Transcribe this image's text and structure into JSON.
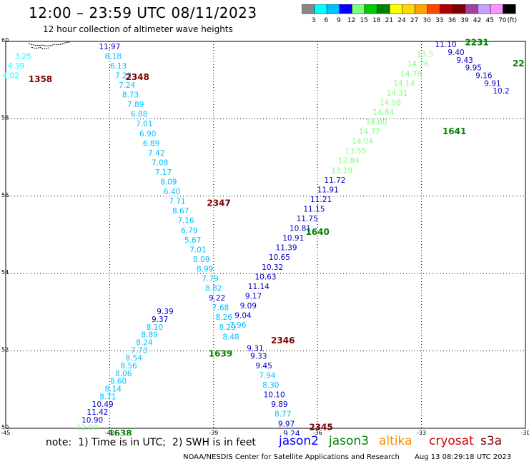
{
  "header": {
    "title": "12:00 – 23:59 UTC 08/11/2023",
    "subtitle": "12 hour collection of altimeter wave heights"
  },
  "colorbar": {
    "colors": [
      "#888888",
      "#00ffff",
      "#00bfff",
      "#0000ff",
      "#80ff80",
      "#00cc00",
      "#008000",
      "#ffff00",
      "#ffd700",
      "#ffa500",
      "#ff4500",
      "#b00000",
      "#800000",
      "#a040a0",
      "#c8a0ff",
      "#ff90ff",
      "#000000"
    ],
    "labels": [
      "3",
      "6",
      "9",
      "12",
      "15",
      "18",
      "21",
      "24",
      "27",
      "30",
      "33",
      "36",
      "39",
      "42",
      "45",
      "70",
      "(ft)"
    ]
  },
  "axes": {
    "lat_labels": [
      "60",
      "58",
      "56",
      "54",
      "52",
      "50"
    ],
    "lon_labels": [
      "-45",
      "-42",
      "-39",
      "-36",
      "-33",
      "-30"
    ]
  },
  "chart_data": {
    "type": "scatter",
    "xlabel": "",
    "ylabel": "",
    "xlim": [
      -45,
      -30
    ],
    "ylim": [
      50,
      60
    ],
    "tracks": [
      {
        "name": "cryosat 2348 track",
        "points": [
          [
            -42.0,
            59.8,
            "11.97",
            "#0000cd"
          ],
          [
            -41.9,
            59.55,
            "8.18",
            "#00bfff"
          ],
          [
            -41.75,
            59.3,
            "6.13",
            "#00bfff"
          ],
          [
            -41.6,
            59.05,
            "7.23",
            "#00bfff"
          ],
          [
            -41.5,
            58.8,
            "7.24",
            "#00bfff"
          ],
          [
            -41.4,
            58.55,
            "8.73",
            "#00bfff"
          ],
          [
            -41.25,
            58.3,
            "7.89",
            "#00bfff"
          ],
          [
            -41.15,
            58.05,
            "6.88",
            "#00bfff"
          ],
          [
            -41.0,
            57.8,
            "7.01",
            "#00bfff"
          ],
          [
            -40.9,
            57.55,
            "6.90",
            "#00bfff"
          ],
          [
            -40.8,
            57.3,
            "6.89",
            "#00bfff"
          ],
          [
            -40.65,
            57.05,
            "7.42",
            "#00bfff"
          ],
          [
            -40.55,
            56.8,
            "7.08",
            "#00bfff"
          ],
          [
            -40.45,
            56.55,
            "7.17",
            "#00bfff"
          ],
          [
            -40.3,
            56.3,
            "8.09",
            "#00bfff"
          ],
          [
            -40.2,
            56.05,
            "6.40",
            "#00bfff"
          ],
          [
            -40.05,
            55.8,
            "7.71",
            "#00bfff"
          ],
          [
            -39.95,
            55.55,
            "8.67",
            "#00bfff"
          ],
          [
            -39.8,
            55.3,
            "7.16",
            "#00bfff"
          ],
          [
            -39.7,
            55.05,
            "6.79",
            "#00bfff"
          ],
          [
            -39.6,
            54.8,
            "5.67",
            "#00bfff"
          ],
          [
            -39.45,
            54.55,
            "7.01",
            "#00bfff"
          ],
          [
            -39.35,
            54.3,
            "8.09",
            "#00bfff"
          ],
          [
            -39.25,
            54.05,
            "8.99",
            "#00bfff"
          ],
          [
            -39.1,
            53.8,
            "7.79",
            "#00bfff"
          ],
          [
            -39.0,
            53.55,
            "8.82",
            "#00bfff"
          ],
          [
            -38.9,
            53.3,
            "9.22",
            "#0000cd"
          ],
          [
            -38.8,
            53.05,
            "7.68",
            "#00bfff"
          ],
          [
            -38.7,
            52.8,
            "8.26",
            "#00bfff"
          ],
          [
            -38.6,
            52.55,
            "8.29",
            "#00bfff"
          ],
          [
            -38.5,
            52.3,
            "8.48",
            "#00bfff"
          ]
        ]
      },
      {
        "name": "cryosat 2346 track",
        "points": [
          [
            -37.8,
            52.0,
            "9.31",
            "#0000cd"
          ],
          [
            -37.7,
            51.8,
            "9.33",
            "#0000cd"
          ],
          [
            -37.55,
            51.55,
            "9.45",
            "#0000cd"
          ],
          [
            -37.45,
            51.3,
            "7.94",
            "#00bfff"
          ],
          [
            -37.35,
            51.05,
            "8.30",
            "#00bfff"
          ],
          [
            -37.25,
            50.8,
            "10.10",
            "#0000cd"
          ],
          [
            -37.1,
            50.55,
            "9.89",
            "#0000cd"
          ],
          [
            -37.0,
            50.3,
            "8.77",
            "#00bfff"
          ],
          [
            -36.9,
            50.05,
            "9.97",
            "#0000cd"
          ],
          [
            -36.75,
            49.8,
            "9.24",
            "#0000cd"
          ]
        ]
      },
      {
        "name": "jason3 1638 track",
        "points": [
          [
            -42.65,
            49.95,
            "12.00",
            "#80ff80"
          ],
          [
            -42.5,
            50.15,
            "10.90",
            "#0000cd"
          ],
          [
            -42.35,
            50.35,
            "11.42",
            "#0000cd"
          ],
          [
            -42.2,
            50.55,
            "10.49",
            "#0000cd"
          ],
          [
            -42.05,
            50.75,
            "8.71",
            "#00bfff"
          ],
          [
            -41.9,
            50.95,
            "8.14",
            "#00bfff"
          ],
          [
            -41.75,
            51.15,
            "8.60",
            "#00bfff"
          ],
          [
            -41.6,
            51.35,
            "8.06",
            "#00bfff"
          ],
          [
            -41.45,
            51.55,
            "8.56",
            "#00bfff"
          ],
          [
            -41.3,
            51.75,
            "8.54",
            "#00bfff"
          ],
          [
            -41.15,
            51.95,
            "7.73",
            "#00bfff"
          ],
          [
            -41.0,
            52.15,
            "8.24",
            "#00bfff"
          ],
          [
            -40.85,
            52.35,
            "8.89",
            "#00bfff"
          ],
          [
            -40.7,
            52.55,
            "8.10",
            "#00bfff"
          ],
          [
            -40.55,
            52.75,
            "9.37",
            "#0000cd"
          ],
          [
            -40.4,
            52.95,
            "9.39",
            "#0000cd"
          ]
        ]
      },
      {
        "name": "jason3 1640 track",
        "points": [
          [
            -38.3,
            52.6,
            "7.96",
            "#00bfff"
          ],
          [
            -38.15,
            52.85,
            "9.04",
            "#0000cd"
          ],
          [
            -38.0,
            53.1,
            "9.09",
            "#0000cd"
          ],
          [
            -37.85,
            53.35,
            "9.17",
            "#0000cd"
          ],
          [
            -37.7,
            53.6,
            "11.14",
            "#0000cd"
          ],
          [
            -37.5,
            53.85,
            "10.63",
            "#0000cd"
          ],
          [
            -37.3,
            54.1,
            "10.32",
            "#0000cd"
          ],
          [
            -37.1,
            54.35,
            "10.65",
            "#0000cd"
          ],
          [
            -36.9,
            54.6,
            "11.39",
            "#0000cd"
          ],
          [
            -36.7,
            54.85,
            "10.91",
            "#0000cd"
          ],
          [
            -36.5,
            55.1,
            "10.81",
            "#0000cd"
          ],
          [
            -36.3,
            55.35,
            "11.75",
            "#0000cd"
          ],
          [
            -36.1,
            55.6,
            "11.15",
            "#0000cd"
          ],
          [
            -35.9,
            55.85,
            "11.21",
            "#0000cd"
          ],
          [
            -35.7,
            56.1,
            "11.91",
            "#0000cd"
          ],
          [
            -35.5,
            56.35,
            "11.72",
            "#0000cd"
          ],
          [
            -35.3,
            56.6,
            "13.19",
            "#80ff80"
          ],
          [
            -35.1,
            56.85,
            "12.84",
            "#80ff80"
          ],
          [
            -34.9,
            57.1,
            "13.55",
            "#80ff80"
          ],
          [
            -34.7,
            57.35,
            "14.04",
            "#80ff80"
          ],
          [
            -34.5,
            57.6,
            "14.77",
            "#80ff80"
          ],
          [
            -34.3,
            57.85,
            "14.80",
            "#80ff80"
          ],
          [
            -34.1,
            58.1,
            "14.84",
            "#80ff80"
          ],
          [
            -33.9,
            58.35,
            "14.08",
            "#80ff80"
          ],
          [
            -33.7,
            58.6,
            "14.31",
            "#80ff80"
          ],
          [
            -33.5,
            58.85,
            "14.14",
            "#80ff80"
          ],
          [
            -33.3,
            59.1,
            "14.78",
            "#80ff80"
          ],
          [
            -33.1,
            59.35,
            "14.76",
            "#80ff80"
          ],
          [
            -32.9,
            59.6,
            "13.5",
            "#80ff80"
          ]
        ]
      },
      {
        "name": "jason3 2231 track",
        "points": [
          [
            -32.3,
            59.85,
            "11.10",
            "#0000cd"
          ],
          [
            -32.0,
            59.65,
            "9.40",
            "#0000cd"
          ],
          [
            -31.75,
            59.45,
            "9.43",
            "#0000cd"
          ],
          [
            -31.5,
            59.25,
            "9.95",
            "#0000cd"
          ],
          [
            -31.2,
            59.05,
            "9.16",
            "#0000cd"
          ],
          [
            -30.95,
            58.85,
            "9.91",
            "#0000cd"
          ],
          [
            -30.7,
            58.65,
            "10.2",
            "#0000cd"
          ]
        ]
      },
      {
        "name": "cryosat 1358 track",
        "points": [
          [
            -44.5,
            59.55,
            "3.25",
            "#00ffff"
          ],
          [
            -44.7,
            59.3,
            "4.39",
            "#00ffff"
          ],
          [
            -44.85,
            59.05,
            "4.02",
            "#00ffff"
          ]
        ]
      }
    ],
    "pass_labels": [
      {
        "text": "2348",
        "x": -41.2,
        "y": 59.0,
        "color": "#800000"
      },
      {
        "text": "1358",
        "x": -44.0,
        "y": 58.95,
        "color": "#800000"
      },
      {
        "text": "2347",
        "x": -38.85,
        "y": 55.75,
        "color": "#800000"
      },
      {
        "text": "2346",
        "x": -37.0,
        "y": 52.2,
        "color": "#800000"
      },
      {
        "text": "2345",
        "x": -35.9,
        "y": 49.95,
        "color": "#800000"
      },
      {
        "text": "1639",
        "x": -38.8,
        "y": 51.85,
        "color": "#008000"
      },
      {
        "text": "1638",
        "x": -41.7,
        "y": 49.8,
        "color": "#008000"
      },
      {
        "text": "1640",
        "x": -36.0,
        "y": 55.0,
        "color": "#008000"
      },
      {
        "text": "1641",
        "x": -32.05,
        "y": 57.6,
        "color": "#008000"
      },
      {
        "text": "2231",
        "x": -31.4,
        "y": 59.9,
        "color": "#008000"
      },
      {
        "text": "22",
        "x": -30.2,
        "y": 59.35,
        "color": "#008000"
      }
    ]
  },
  "footer": {
    "note": "note:  1) Time is in UTC;  2) SWH is in feet",
    "satellites": [
      {
        "label": "jason2",
        "color": "#0000ff"
      },
      {
        "label": "jason3",
        "color": "#008000"
      },
      {
        "label": "altika",
        "color": "#ff8c00"
      },
      {
        "label": "cryosat",
        "color": "#cc0000"
      },
      {
        "label": "s3a",
        "color": "#800000"
      }
    ],
    "credit": "NOAA/NESDIS Center for Satellite Applications and Research",
    "timestamp": "Aug 13 08:29:18 UTC 2023"
  }
}
